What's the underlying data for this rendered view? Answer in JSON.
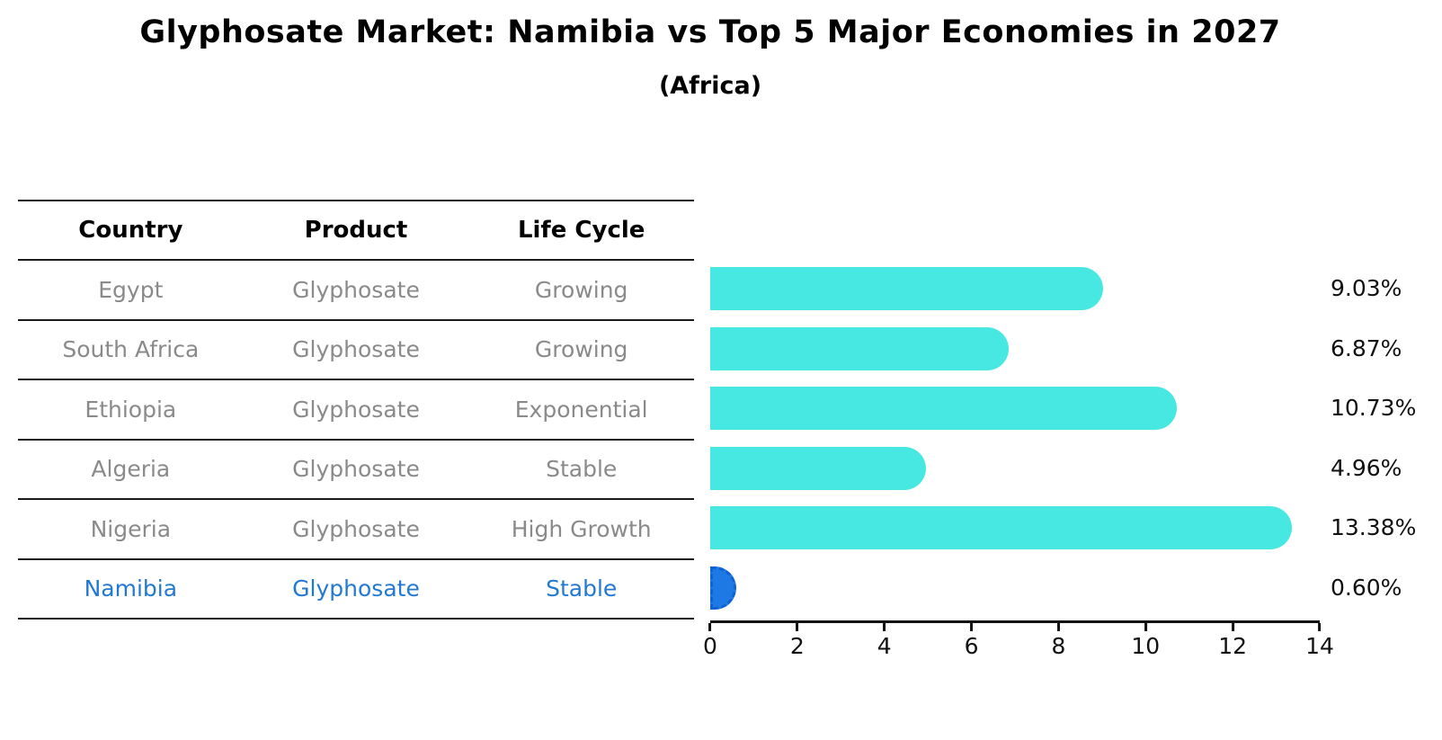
{
  "header": {
    "title": "Glyphosate Market: Namibia vs Top 5 Major Economies in 2027",
    "subtitle": "(Africa)"
  },
  "table": {
    "columns": [
      "Country",
      "Product",
      "Life Cycle"
    ],
    "rows": [
      {
        "country": "Egypt",
        "product": "Glyphosate",
        "life_cycle": "Growing",
        "share_label": "9.03%",
        "highlight": false
      },
      {
        "country": "South Africa",
        "product": "Glyphosate",
        "life_cycle": "Growing",
        "share_label": "6.87%",
        "highlight": false
      },
      {
        "country": "Ethiopia",
        "product": "Glyphosate",
        "life_cycle": "Exponential",
        "share_label": "10.73%",
        "highlight": false
      },
      {
        "country": "Algeria",
        "product": "Glyphosate",
        "life_cycle": "Stable",
        "share_label": "4.96%",
        "highlight": false
      },
      {
        "country": "Nigeria",
        "product": "Glyphosate",
        "life_cycle": "High Growth",
        "share_label": "13.38%",
        "highlight": false
      },
      {
        "country": "Namibia",
        "product": "Glyphosate",
        "life_cycle": "Stable",
        "share_label": "0.60%",
        "highlight": true
      }
    ]
  },
  "chart_data": {
    "type": "bar",
    "orientation": "horizontal",
    "title": "Glyphosate Market: Namibia vs Top 5 Major Economies in 2027",
    "subtitle": "(Africa)",
    "categories": [
      "Egypt",
      "South Africa",
      "Ethiopia",
      "Algeria",
      "Nigeria",
      "Namibia"
    ],
    "values": [
      9.03,
      6.87,
      10.73,
      4.96,
      13.38,
      0.6
    ],
    "value_labels": [
      "9.03%",
      "6.87%",
      "10.73%",
      "4.96%",
      "13.38%",
      "0.60%"
    ],
    "unit": "percent",
    "xlabel": "",
    "ylabel": "",
    "xlim": [
      0,
      14
    ],
    "x_ticks": [
      0,
      2,
      4,
      6,
      8,
      10,
      12,
      14
    ],
    "x_tick_labels": [
      "0",
      "2",
      "4",
      "6",
      "8",
      "10",
      "12",
      "14"
    ],
    "grid": false,
    "legend": false,
    "bar_color": "#47e8e1",
    "highlight_index": 5,
    "highlight_color": "#1e79e5",
    "highlight_border": "#0e62d6"
  },
  "colors": {
    "bar_cyan": "#47e8e1",
    "bar_blue": "#1e79e5",
    "highlight_text": "#2379d0",
    "muted_text": "#8a8a8a",
    "axis_black": "#111111"
  }
}
